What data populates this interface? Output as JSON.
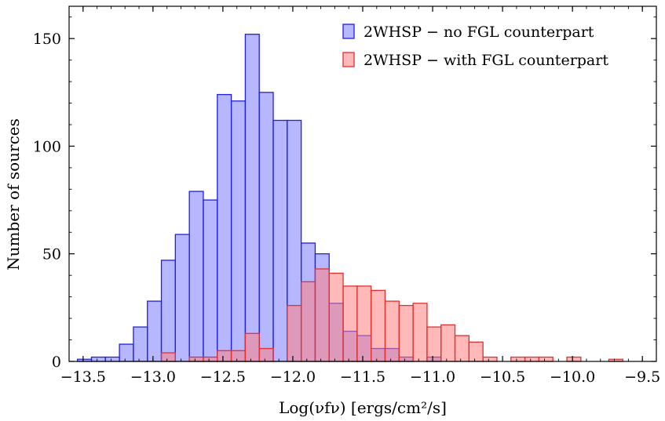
{
  "chart_data": {
    "type": "bar",
    "title": "",
    "xlabel": "Log(νfν) [ergs/cm²/s]",
    "ylabel": "Number of sources",
    "xlim": [
      -13.6,
      -9.4
    ],
    "ylim": [
      0,
      165
    ],
    "x_ticks": [
      -13.5,
      -13.0,
      -12.5,
      -12.0,
      -11.5,
      -11.0,
      -10.5,
      -10.0,
      -9.5
    ],
    "x_tick_labels": [
      "−13.5",
      "−13.0",
      "−12.5",
      "−12.0",
      "−11.5",
      "−11.0",
      "−10.5",
      "−10.0",
      "−9.5"
    ],
    "y_ticks": [
      0,
      50,
      100,
      150
    ],
    "y_tick_labels": [
      "0",
      "50",
      "100",
      "150"
    ],
    "bin_width": 0.1,
    "legend_position": "top-right",
    "series": [
      {
        "name": "2WHSP − no FGL counterpart",
        "fill": "#7b7bff",
        "edge": "#2020e0",
        "opacity": 0.55,
        "bins": [
          {
            "x0": -13.54,
            "v": 1
          },
          {
            "x0": -13.44,
            "v": 2
          },
          {
            "x0": -13.34,
            "v": 2
          },
          {
            "x0": -13.24,
            "v": 8
          },
          {
            "x0": -13.14,
            "v": 16
          },
          {
            "x0": -13.04,
            "v": 28
          },
          {
            "x0": -12.94,
            "v": 47
          },
          {
            "x0": -12.84,
            "v": 59
          },
          {
            "x0": -12.74,
            "v": 79
          },
          {
            "x0": -12.64,
            "v": 75
          },
          {
            "x0": -12.54,
            "v": 124
          },
          {
            "x0": -12.44,
            "v": 121
          },
          {
            "x0": -12.34,
            "v": 152
          },
          {
            "x0": -12.24,
            "v": 125
          },
          {
            "x0": -12.14,
            "v": 112
          },
          {
            "x0": -12.04,
            "v": 112
          },
          {
            "x0": -11.94,
            "v": 55
          },
          {
            "x0": -11.84,
            "v": 50
          },
          {
            "x0": -11.74,
            "v": 27
          },
          {
            "x0": -11.64,
            "v": 14
          },
          {
            "x0": -11.54,
            "v": 12
          },
          {
            "x0": -11.44,
            "v": 6
          },
          {
            "x0": -11.34,
            "v": 6
          },
          {
            "x0": -11.24,
            "v": 2
          },
          {
            "x0": -11.04,
            "v": 2
          }
        ]
      },
      {
        "name": "2WHSP − with FGL counterpart",
        "fill": "#ff8080",
        "edge": "#e03030",
        "opacity": 0.55,
        "bins": [
          {
            "x0": -12.94,
            "v": 4
          },
          {
            "x0": -12.74,
            "v": 2
          },
          {
            "x0": -12.64,
            "v": 2
          },
          {
            "x0": -12.54,
            "v": 5
          },
          {
            "x0": -12.44,
            "v": 5
          },
          {
            "x0": -12.34,
            "v": 13
          },
          {
            "x0": -12.24,
            "v": 6
          },
          {
            "x0": -12.04,
            "v": 26
          },
          {
            "x0": -11.94,
            "v": 37
          },
          {
            "x0": -11.84,
            "v": 43
          },
          {
            "x0": -11.74,
            "v": 41
          },
          {
            "x0": -11.64,
            "v": 35
          },
          {
            "x0": -11.54,
            "v": 35
          },
          {
            "x0": -11.44,
            "v": 33
          },
          {
            "x0": -11.34,
            "v": 28
          },
          {
            "x0": -11.24,
            "v": 26
          },
          {
            "x0": -11.14,
            "v": 27
          },
          {
            "x0": -11.04,
            "v": 16
          },
          {
            "x0": -10.94,
            "v": 17
          },
          {
            "x0": -10.84,
            "v": 12
          },
          {
            "x0": -10.74,
            "v": 9
          },
          {
            "x0": -10.64,
            "v": 2
          },
          {
            "x0": -10.44,
            "v": 2
          },
          {
            "x0": -10.34,
            "v": 2
          },
          {
            "x0": -10.24,
            "v": 2
          },
          {
            "x0": -10.04,
            "v": 2
          },
          {
            "x0": -9.74,
            "v": 1
          }
        ]
      }
    ]
  }
}
